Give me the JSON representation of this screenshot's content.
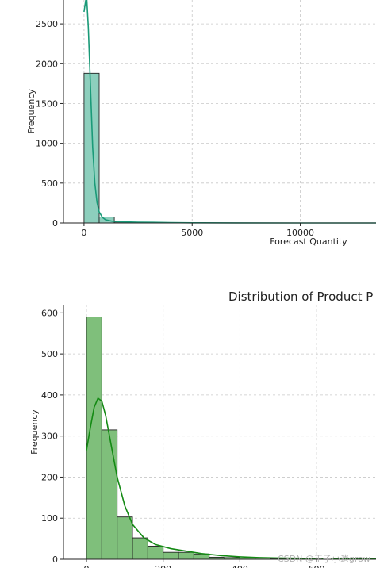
{
  "chart_data": [
    {
      "type": "bar",
      "title": "",
      "xlabel": "Forecast Quantity",
      "ylabel": "Frequency",
      "xlim": [
        -950,
        13500
      ],
      "ylim": [
        0,
        2800
      ],
      "xticks": [
        0,
        5000,
        10000
      ],
      "yticks": [
        0,
        500,
        1000,
        1500,
        2000,
        2500
      ],
      "grid": true,
      "bin_width": 700,
      "bins": [
        {
          "x0": 0,
          "x1": 700,
          "value": 1880
        },
        {
          "x0": 700,
          "x1": 1400,
          "value": 75
        },
        {
          "x0": 1400,
          "x1": 2100,
          "value": 12
        },
        {
          "x0": 2100,
          "x1": 2800,
          "value": 6
        },
        {
          "x0": 2800,
          "x1": 3500,
          "value": 10
        },
        {
          "x0": 3500,
          "x1": 4200,
          "value": 3
        },
        {
          "x0": 4200,
          "x1": 4900,
          "value": 2
        }
      ],
      "bar_color": "#8dcfbd",
      "kde_color": "#1a9a78",
      "kde": [
        [
          0,
          2650
        ],
        [
          70,
          2780
        ],
        [
          120,
          2850
        ],
        [
          200,
          2450
        ],
        [
          300,
          1700
        ],
        [
          400,
          950
        ],
        [
          500,
          500
        ],
        [
          600,
          260
        ],
        [
          700,
          140
        ],
        [
          850,
          70
        ],
        [
          1000,
          40
        ],
        [
          1300,
          22
        ],
        [
          1800,
          14
        ],
        [
          2500,
          10
        ],
        [
          3200,
          8
        ],
        [
          4000,
          4
        ],
        [
          5000,
          2
        ],
        [
          7000,
          1
        ],
        [
          10000,
          0
        ],
        [
          13500,
          0
        ]
      ]
    },
    {
      "type": "bar",
      "title": "Distribution of Product P",
      "xlabel": "",
      "ylabel": "Frequency",
      "xlim": [
        -60,
        755
      ],
      "ylim": [
        0,
        620
      ],
      "xticks": [
        0,
        200,
        400,
        600
      ],
      "yticks": [
        0,
        100,
        200,
        300,
        400,
        500,
        600
      ],
      "grid": true,
      "bin_width": 40,
      "bins": [
        {
          "x0": 0,
          "x1": 40,
          "value": 590
        },
        {
          "x0": 40,
          "x1": 80,
          "value": 315
        },
        {
          "x0": 80,
          "x1": 120,
          "value": 103
        },
        {
          "x0": 120,
          "x1": 160,
          "value": 52
        },
        {
          "x0": 160,
          "x1": 200,
          "value": 32
        },
        {
          "x0": 200,
          "x1": 240,
          "value": 17
        },
        {
          "x0": 240,
          "x1": 280,
          "value": 17
        },
        {
          "x0": 280,
          "x1": 320,
          "value": 13
        },
        {
          "x0": 320,
          "x1": 360,
          "value": 5
        },
        {
          "x0": 360,
          "x1": 400,
          "value": 4
        },
        {
          "x0": 400,
          "x1": 440,
          "value": 3
        },
        {
          "x0": 440,
          "x1": 480,
          "value": 3
        },
        {
          "x0": 480,
          "x1": 520,
          "value": 2
        },
        {
          "x0": 520,
          "x1": 560,
          "value": 2
        },
        {
          "x0": 560,
          "x1": 600,
          "value": 1
        },
        {
          "x0": 600,
          "x1": 640,
          "value": 1
        },
        {
          "x0": 640,
          "x1": 680,
          "value": 1
        },
        {
          "x0": 680,
          "x1": 720,
          "value": 1
        }
      ],
      "bar_color": "#7fbf7b",
      "kde_color": "#148a14",
      "kde": [
        [
          0,
          265
        ],
        [
          10,
          320
        ],
        [
          20,
          370
        ],
        [
          30,
          392
        ],
        [
          40,
          385
        ],
        [
          50,
          350
        ],
        [
          60,
          300
        ],
        [
          80,
          200
        ],
        [
          100,
          130
        ],
        [
          120,
          85
        ],
        [
          150,
          52
        ],
        [
          180,
          36
        ],
        [
          220,
          26
        ],
        [
          260,
          20
        ],
        [
          300,
          14
        ],
        [
          350,
          9
        ],
        [
          400,
          6
        ],
        [
          450,
          4
        ],
        [
          500,
          3
        ],
        [
          600,
          2
        ],
        [
          700,
          1
        ],
        [
          755,
          1
        ]
      ]
    }
  ],
  "watermark": "CSDN @王子小遗grow"
}
